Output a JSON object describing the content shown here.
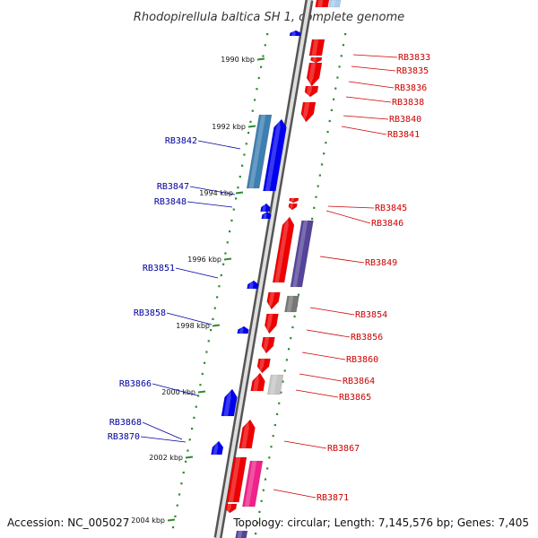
{
  "title": "Rhodopirellula baltica SH 1, complete genome",
  "footer": {
    "accession": "Accession: NC_005027",
    "summary": "Topology: circular; Length: 7,145,576 bp; Genes: 7,405"
  },
  "colors": {
    "backbone_outer": "#555555",
    "backbone_inner": "#e0e0e0",
    "tick": "#2e8b2e",
    "reverse_label": "#00009e",
    "forward_label": "#cc0000",
    "forward_gene": "#ee0000",
    "reverse_gene": "#0000ee",
    "steelblue_gene": "#3d7fb0",
    "purple_gene": "#554499",
    "gray_gene": "#777777",
    "lightgray_gene": "#c4c4c4",
    "pink_gene": "#ee2288",
    "lightblue_gene": "#aaccee"
  },
  "kbp_markers": [
    "1990 kbp",
    "1992 kbp",
    "1994 kbp",
    "1996 kbp",
    "1998 kbp",
    "2000 kbp",
    "2002 kbp",
    "2004 kbp"
  ],
  "reverse_strand_labels": [
    "RB3842",
    "RB3847",
    "RB3848",
    "RB3851",
    "RB3858",
    "RB3866",
    "RB3868",
    "RB3870"
  ],
  "forward_strand_labels": [
    "RB3833",
    "RB3835",
    "RB3836",
    "RB3838",
    "RB3840",
    "RB3841",
    "RB3845",
    "RB3846",
    "RB3849",
    "RB3854",
    "RB3856",
    "RB3860",
    "RB3864",
    "RB3865",
    "RB3867",
    "RB3871"
  ]
}
